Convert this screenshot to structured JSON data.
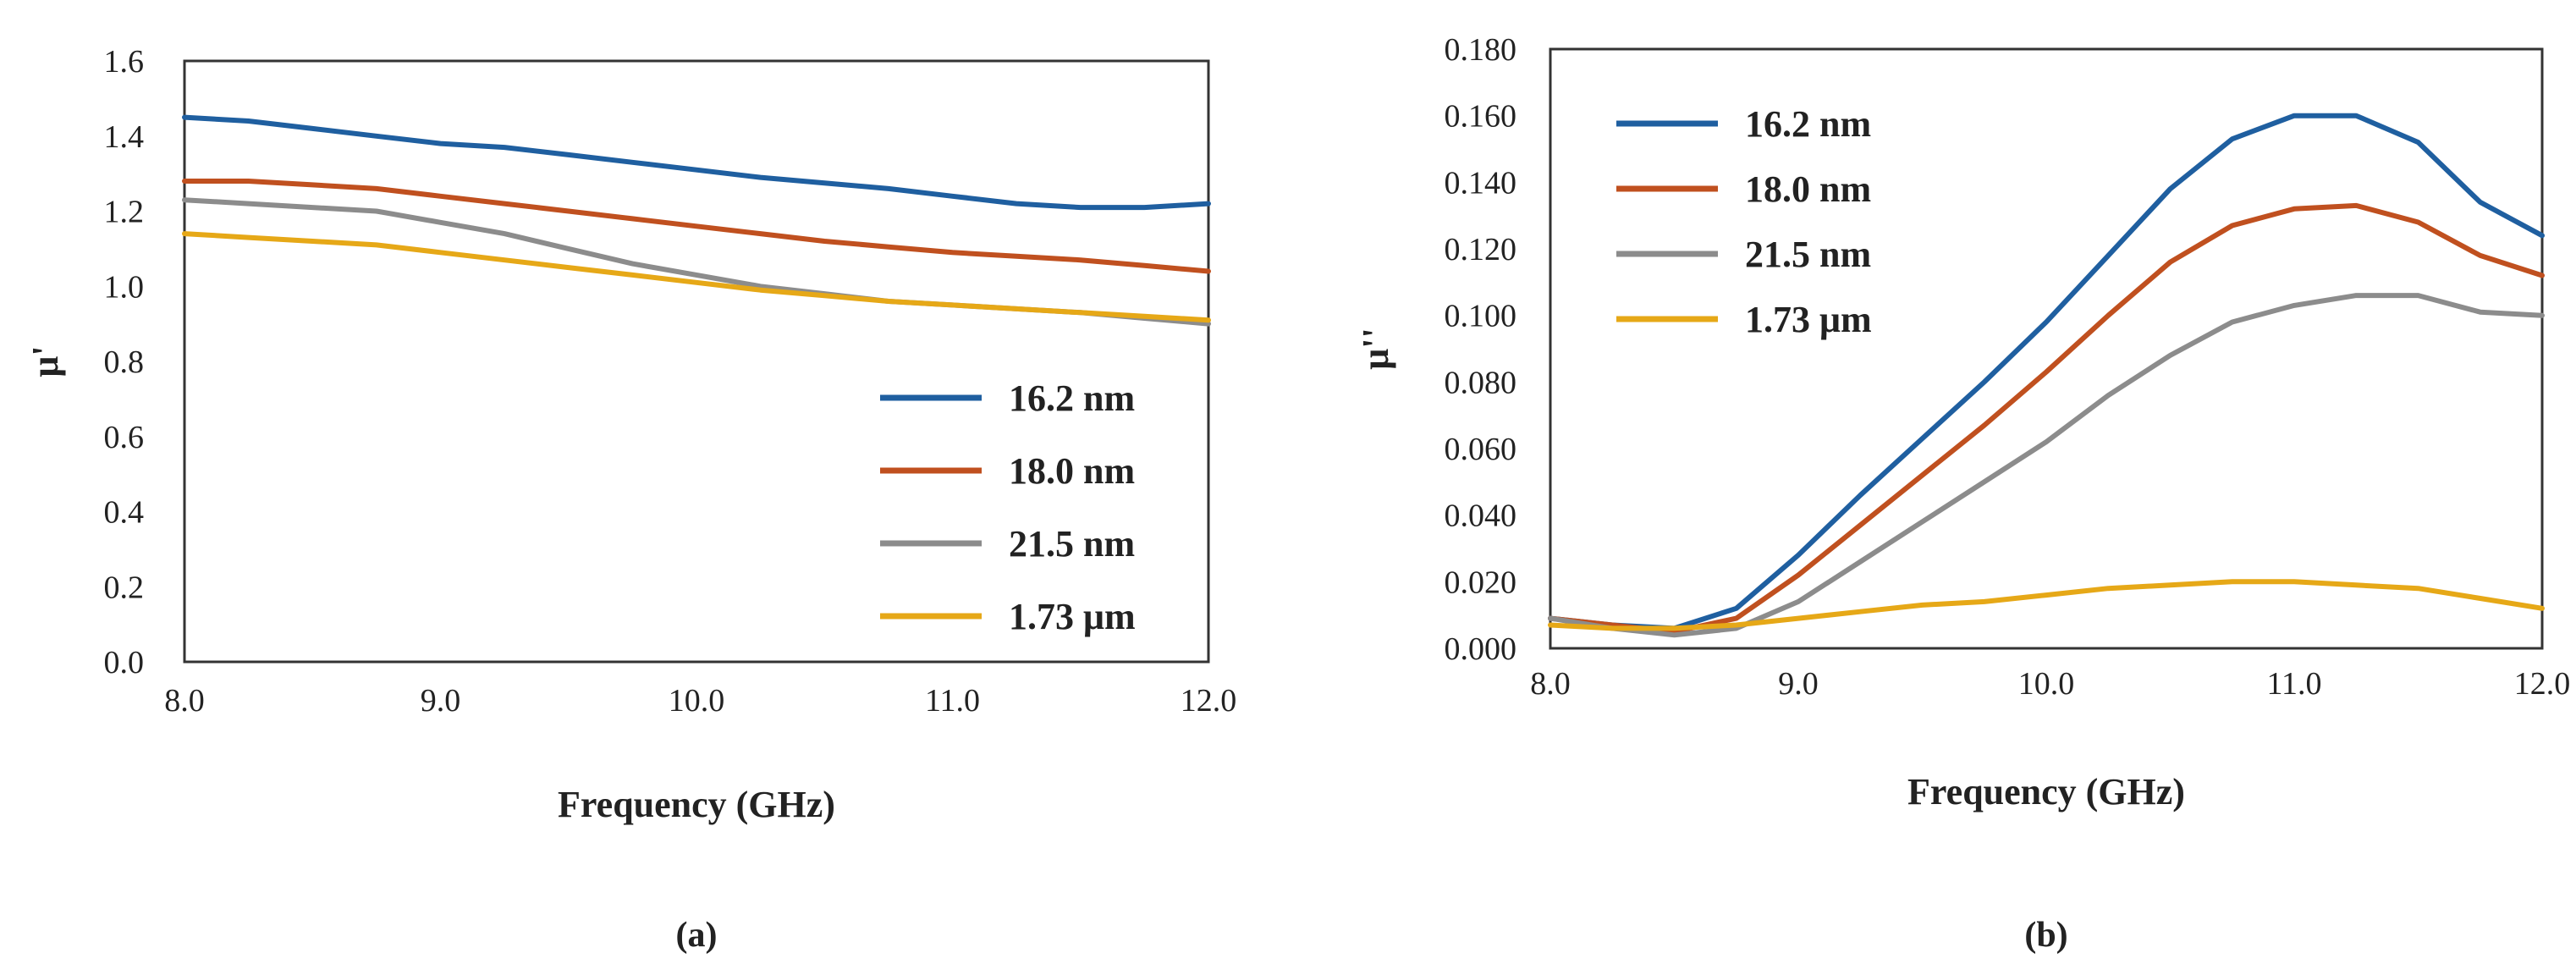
{
  "chart_data": [
    {
      "type": "line",
      "panel": "a",
      "caption": "(a)",
      "xlabel": "Frequency (GHz)",
      "ylabel": "μ'",
      "xlim": [
        8.0,
        12.0
      ],
      "ylim": [
        0.0,
        1.6
      ],
      "x_ticks": [
        "8.0",
        "9.0",
        "10.0",
        "11.0",
        "12.0"
      ],
      "y_ticks": [
        "0.0",
        "0.2",
        "0.4",
        "0.6",
        "0.8",
        "1.0",
        "1.2",
        "1.4",
        "1.6"
      ],
      "legend_position": "bottom-right",
      "x": [
        8.0,
        8.25,
        8.5,
        8.75,
        9.0,
        9.25,
        9.5,
        9.75,
        10.0,
        10.25,
        10.5,
        10.75,
        11.0,
        11.25,
        11.5,
        11.75,
        12.0
      ],
      "series": [
        {
          "name": "16.2 nm",
          "color": "#1f5fa0",
          "values": [
            1.45,
            1.44,
            1.42,
            1.4,
            1.38,
            1.37,
            1.35,
            1.33,
            1.31,
            1.29,
            1.275,
            1.26,
            1.24,
            1.22,
            1.21,
            1.21,
            1.22
          ]
        },
        {
          "name": "18.0 nm",
          "color": "#c0501f",
          "values": [
            1.28,
            1.28,
            1.27,
            1.26,
            1.24,
            1.22,
            1.2,
            1.18,
            1.16,
            1.14,
            1.12,
            1.105,
            1.09,
            1.08,
            1.07,
            1.055,
            1.04
          ]
        },
        {
          "name": "21.5 nm",
          "color": "#8c8c8c",
          "values": [
            1.23,
            1.22,
            1.21,
            1.2,
            1.17,
            1.14,
            1.1,
            1.06,
            1.03,
            1.0,
            0.98,
            0.96,
            0.95,
            0.94,
            0.93,
            0.915,
            0.9
          ]
        },
        {
          "name": "1.73 μm",
          "color": "#e6a817",
          "values": [
            1.14,
            1.13,
            1.12,
            1.11,
            1.09,
            1.07,
            1.05,
            1.03,
            1.01,
            0.99,
            0.975,
            0.96,
            0.95,
            0.94,
            0.93,
            0.92,
            0.91
          ]
        }
      ]
    },
    {
      "type": "line",
      "panel": "b",
      "caption": "(b)",
      "xlabel": "Frequency (GHz)",
      "ylabel": "μ''",
      "xlim": [
        8.0,
        12.0
      ],
      "ylim": [
        0.0,
        0.18
      ],
      "x_ticks": [
        "8.0",
        "9.0",
        "10.0",
        "11.0",
        "12.0"
      ],
      "y_ticks": [
        "0.000",
        "0.020",
        "0.040",
        "0.060",
        "0.080",
        "0.100",
        "0.120",
        "0.140",
        "0.160",
        "0.180"
      ],
      "legend_position": "top-left",
      "x": [
        8.0,
        8.25,
        8.5,
        8.75,
        9.0,
        9.25,
        9.5,
        9.75,
        10.0,
        10.25,
        10.5,
        10.75,
        11.0,
        11.25,
        11.5,
        11.75,
        12.0
      ],
      "series": [
        {
          "name": "16.2 nm",
          "color": "#1f5fa0",
          "values": [
            0.009,
            0.007,
            0.006,
            0.012,
            0.028,
            0.046,
            0.063,
            0.08,
            0.098,
            0.118,
            0.138,
            0.153,
            0.16,
            0.16,
            0.152,
            0.134,
            0.124
          ]
        },
        {
          "name": "18.0 nm",
          "color": "#c0501f",
          "values": [
            0.009,
            0.007,
            0.005,
            0.009,
            0.022,
            0.037,
            0.052,
            0.067,
            0.083,
            0.1,
            0.116,
            0.127,
            0.132,
            0.133,
            0.128,
            0.118,
            0.112
          ]
        },
        {
          "name": "21.5 nm",
          "color": "#8c8c8c",
          "values": [
            0.009,
            0.006,
            0.004,
            0.006,
            0.014,
            0.026,
            0.038,
            0.05,
            0.062,
            0.076,
            0.088,
            0.098,
            0.103,
            0.106,
            0.106,
            0.101,
            0.1
          ]
        },
        {
          "name": "1.73 μm",
          "color": "#e6a817",
          "values": [
            0.007,
            0.006,
            0.006,
            0.007,
            0.009,
            0.011,
            0.013,
            0.014,
            0.016,
            0.018,
            0.019,
            0.02,
            0.02,
            0.019,
            0.018,
            0.015,
            0.012
          ]
        }
      ]
    }
  ]
}
